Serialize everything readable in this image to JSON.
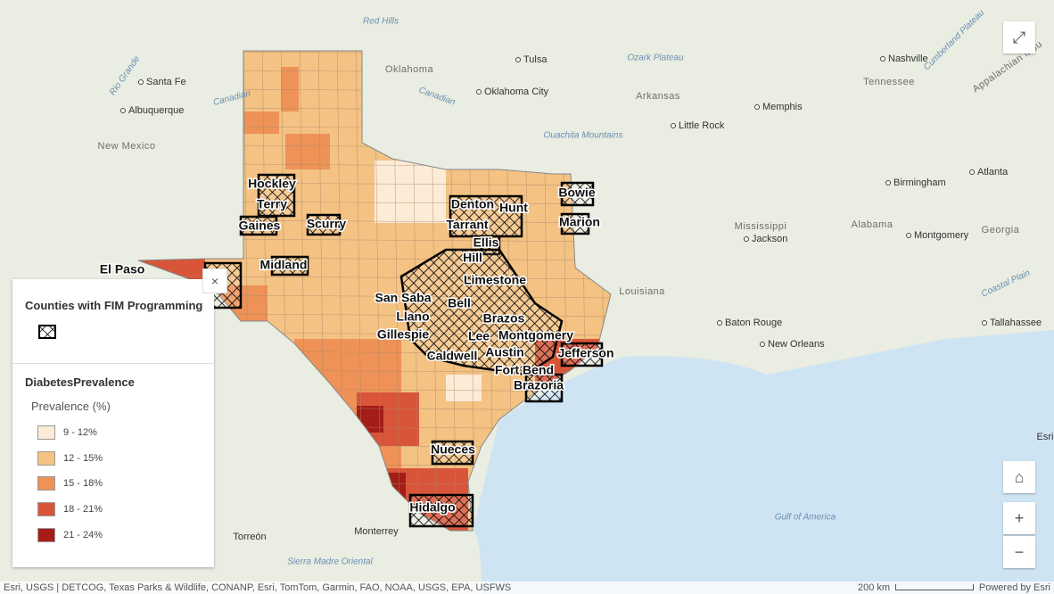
{
  "places": [
    "Red Hills",
    "Oklahoma",
    "Tulsa",
    "Ozark Plateau",
    "Nashville",
    "Santa Fe",
    "Albuquerque",
    "Oklahoma City",
    "Arkansas",
    "Tennessee",
    "Memphis",
    "Little Rock",
    "Ouachita Mountains",
    "New Mexico",
    "Atlanta",
    "Birmingham",
    "Mississippi",
    "Jackson",
    "Alabama",
    "Montgomery",
    "Georgia",
    "Louisiana",
    "Baton Rouge",
    "Tallahassee",
    "New Orleans",
    "Gulf of America",
    "Monterrey",
    "Torreón",
    "Sierra Madre Oriental",
    "Esri",
    "Rio Grande",
    "Canadian",
    "Canadian",
    "Cumberland Plateau",
    "Appalachian Mou",
    "Coastal Plain"
  ],
  "counties": [
    "Hockley",
    "Terry",
    "Gaines",
    "Scurry",
    "Midland",
    "El Paso",
    "Denton",
    "Hunt",
    "Tarrant",
    "Ellis",
    "Hill",
    "Limestone",
    "San Saba",
    "Bell",
    "Llano",
    "Brazos",
    "Gillespie",
    "Lee",
    "Montgomery",
    "Caldwell",
    "Austin",
    "Jefferson",
    "Fort Bend",
    "Brazoria",
    "Nueces",
    "Hidalgo",
    "Bowie",
    "Marion"
  ],
  "legend": {
    "layer1_title": "Counties with FIM Programming",
    "layer2_title": "DiabetesPrevalence",
    "field": "Prevalence (%)",
    "classes": [
      {
        "label": "9 - 12%",
        "color": "#fcebd6"
      },
      {
        "label": "12 - 15%",
        "color": "#f4c283"
      },
      {
        "label": "15 - 18%",
        "color": "#ee9257"
      },
      {
        "label": "18 - 21%",
        "color": "#d8553a"
      },
      {
        "label": "21 - 24%",
        "color": "#a51d17"
      }
    ]
  },
  "attribution": "Esri, USGS | DETCOG, Texas Parks & Wildlife, CONANP, Esri, TomTom, Garmin, FAO, NOAA, USGS, EPA, USFWS",
  "scale": "200 km",
  "powered_by": "Powered by Esri"
}
